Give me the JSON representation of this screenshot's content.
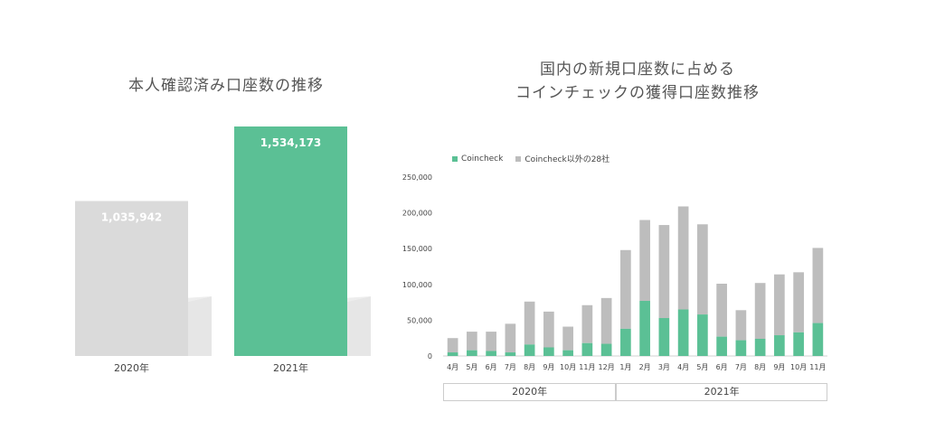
{
  "colors": {
    "accent": "#5bc095",
    "gray_bar": "#dadada",
    "gray_series": "#bdbdbd",
    "shadow": "#e6e6e6",
    "axis": "#d0d0d0"
  },
  "chart_data": [
    {
      "type": "bar",
      "title": "本人確認済み口座数の推移",
      "categories": [
        "2020年",
        "2021年"
      ],
      "values": [
        1035942,
        1534173
      ],
      "value_labels": [
        "1,035,942",
        "1,534,173"
      ],
      "ylim": [
        0,
        1534173
      ]
    },
    {
      "type": "bar",
      "stacked": true,
      "title_lines": [
        "国内の新規口座数に占める",
        "コインチェックの獲得口座数推移"
      ],
      "categories": [
        "4月",
        "5月",
        "6月",
        "7月",
        "8月",
        "9月",
        "10月",
        "11月",
        "12月",
        "1月",
        "2月",
        "3月",
        "4月",
        "5月",
        "6月",
        "7月",
        "8月",
        "9月",
        "10月",
        "11月"
      ],
      "year_groups": [
        {
          "label": "2020年",
          "count": 9
        },
        {
          "label": "2021年",
          "count": 11
        }
      ],
      "series": [
        {
          "name": "Coincheck",
          "values": [
            5000,
            8000,
            7000,
            5000,
            16000,
            12000,
            8000,
            18000,
            17000,
            38000,
            77000,
            53000,
            65000,
            58000,
            27000,
            22000,
            24000,
            29000,
            33000,
            46000
          ]
        },
        {
          "name": "Coincheck以外の28社",
          "values": [
            20000,
            26000,
            27000,
            40000,
            60000,
            50000,
            33000,
            53000,
            64000,
            110000,
            113000,
            130000,
            144000,
            126000,
            74000,
            42000,
            78000,
            85000,
            84000,
            105000
          ]
        }
      ],
      "yticks": [
        "0",
        "50,000",
        "100,000",
        "150,000",
        "200,000",
        "250,000"
      ],
      "ytick_values": [
        0,
        50000,
        100000,
        150000,
        200000,
        250000
      ],
      "ylim": [
        0,
        250000
      ],
      "legend_position": "top-left"
    }
  ]
}
